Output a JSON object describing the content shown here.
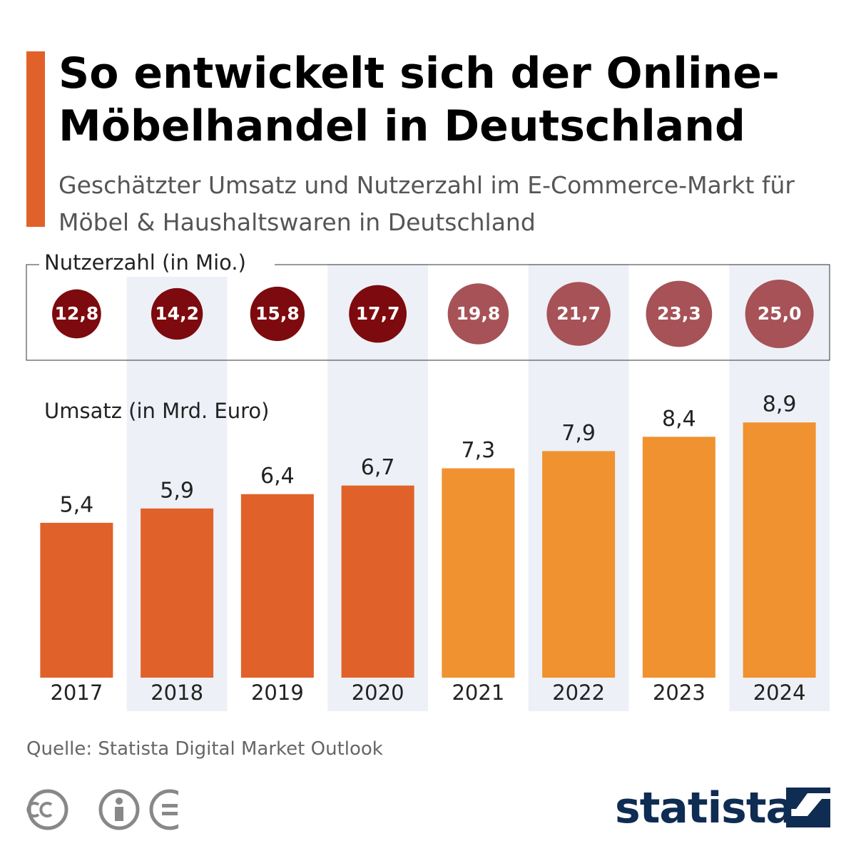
{
  "chart_data": {
    "type": "bar",
    "title": "So entwickelt sich der Online-Möbelhandel in Deutschland",
    "subtitle": "Geschätzter Umsatz und Nutzerzahl im E-Commerce-Markt für Möbel & Haushaltswaren in Deutschland",
    "source": "Quelle: Statista Digital Market Outlook",
    "brand": "statista",
    "categories": [
      "2017",
      "2018",
      "2019",
      "2020",
      "2021",
      "2022",
      "2023",
      "2024"
    ],
    "series": [
      {
        "name": "Nutzerzahl (in Mio.)",
        "type": "bubble",
        "values": [
          12.8,
          14.2,
          15.8,
          17.7,
          19.8,
          21.7,
          23.3,
          25.0
        ],
        "value_labels": [
          "12,8",
          "14,2",
          "15,8",
          "17,7",
          "19,8",
          "21,7",
          "23,3",
          "25,0"
        ],
        "colors": [
          "#7d0a0e",
          "#7d0a0e",
          "#7d0a0e",
          "#7d0a0e",
          "#a65257",
          "#a65257",
          "#a65257",
          "#a65257"
        ]
      },
      {
        "name": "Umsatz (in Mrd. Euro)",
        "type": "bar",
        "values": [
          5.4,
          5.9,
          6.4,
          6.7,
          7.3,
          7.9,
          8.4,
          8.9
        ],
        "value_labels": [
          "5,4",
          "5,9",
          "6,4",
          "6,7",
          "7,3",
          "7,9",
          "8,4",
          "8,9"
        ],
        "colors": [
          "#e0622a",
          "#e0622a",
          "#e0622a",
          "#e0622a",
          "#ef922f",
          "#ef922f",
          "#ef922f",
          "#ef922f"
        ]
      }
    ]
  }
}
